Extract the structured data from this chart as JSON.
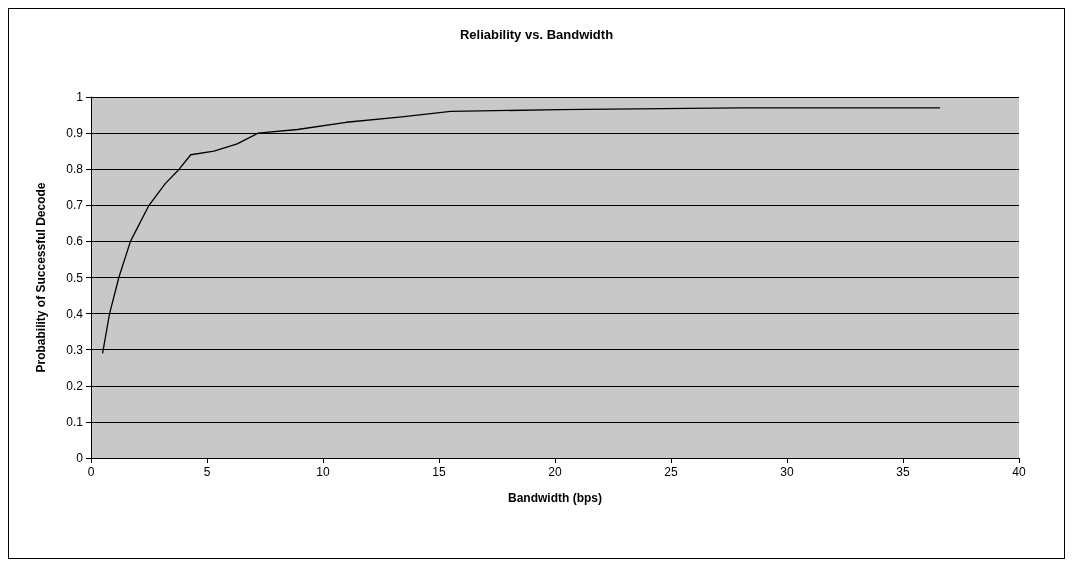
{
  "chart_data": {
    "type": "line",
    "title": "Reliability vs. Bandwidth",
    "xlabel": "Bandwidth (bps)",
    "ylabel": "Probability of Successful Decode",
    "x": [
      0.5,
      0.8,
      1.2,
      1.7,
      2.5,
      3.2,
      3.8,
      4.3,
      5.3,
      6.3,
      7.2,
      8.9,
      11,
      13.4,
      15.5,
      20.2,
      28,
      36.6
    ],
    "series": [
      {
        "color": "#000000",
        "values": [
          0.29,
          0.4,
          0.5,
          0.6,
          0.7,
          0.76,
          0.8,
          0.84,
          0.85,
          0.87,
          0.9,
          0.91,
          0.93,
          0.945,
          0.96,
          0.965,
          0.97,
          0.97
        ]
      }
    ],
    "xlim": [
      0,
      40
    ],
    "xticks": [
      0,
      5,
      10,
      15,
      20,
      25,
      30,
      35,
      40
    ],
    "ylim": [
      0,
      1
    ],
    "yticks": [
      0,
      0.1,
      0.2,
      0.3,
      0.4,
      0.5,
      0.6,
      0.7,
      0.8,
      0.9,
      1
    ],
    "grid": "y",
    "marker": "none",
    "line_style": "solid"
  }
}
